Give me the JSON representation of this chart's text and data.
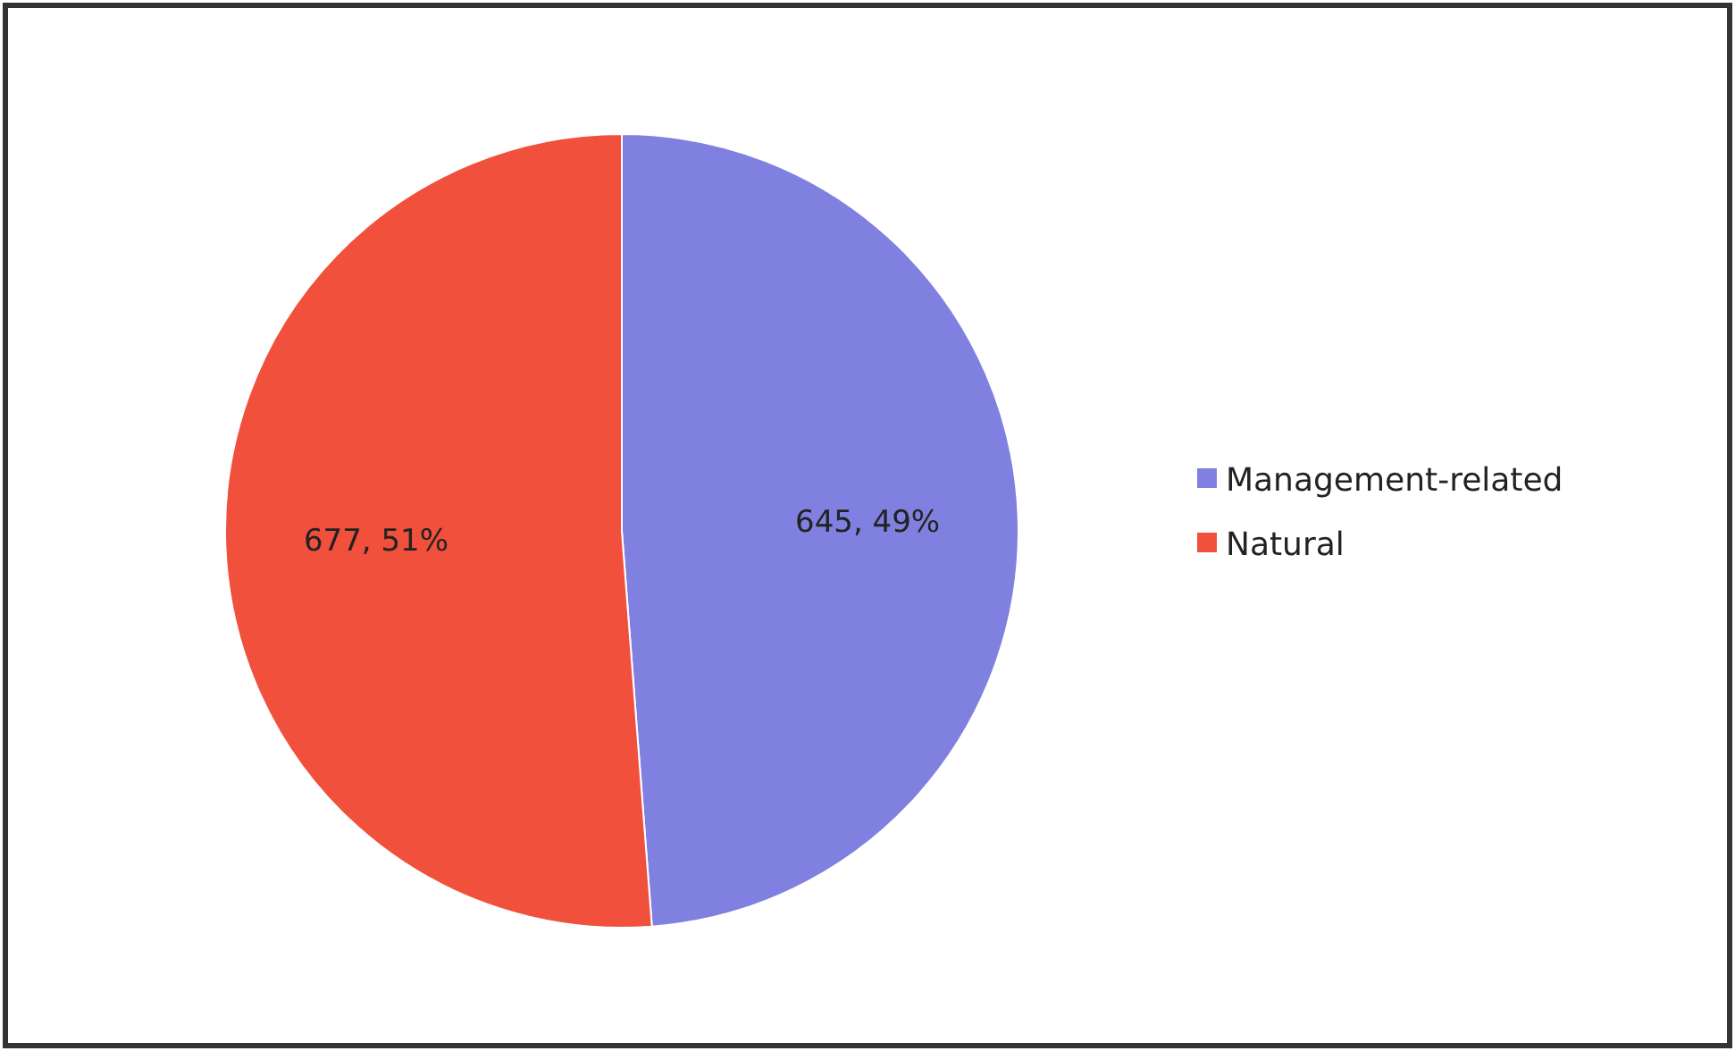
{
  "chart_data": {
    "type": "pie",
    "categories": [
      "Management-related",
      "Natural"
    ],
    "values": [
      645,
      677
    ],
    "colors": [
      "#8080e0",
      "#f0503c"
    ],
    "value_labels": [
      "645, 49%",
      "677, 51%"
    ],
    "legend": "right"
  }
}
